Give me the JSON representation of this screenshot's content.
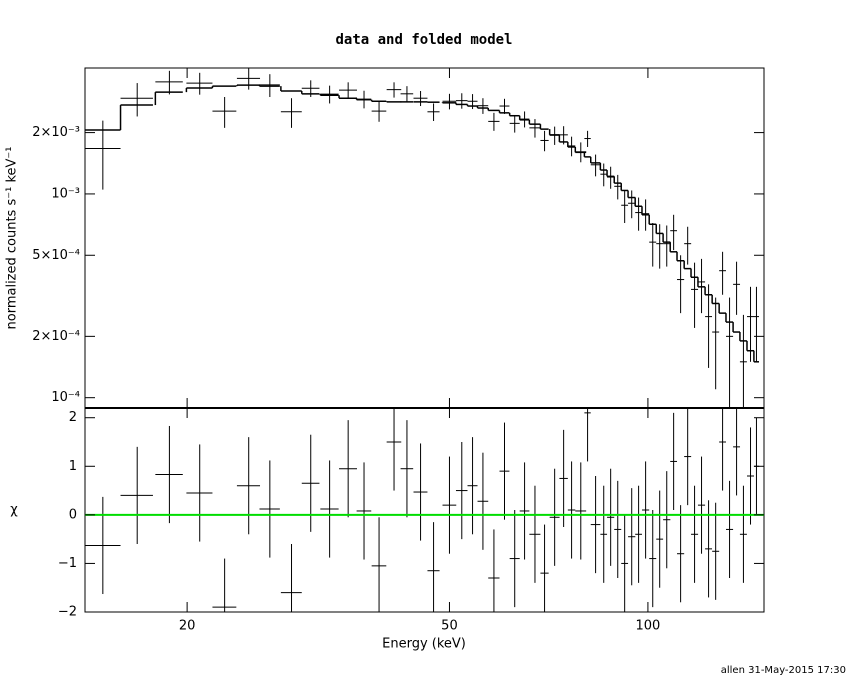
{
  "chart_data": {
    "type": "spectrum",
    "title": "data and folded model",
    "xlabel": "Energy (keV)",
    "ylabel": "normalized counts s⁻¹ keV⁻¹",
    "chi_label": "χ",
    "footer": "allen 31-May-2015 17:30",
    "xscale": "log",
    "yscale": "log",
    "xlim": [
      14,
      150
    ],
    "ylim": [
      8.9e-05,
      0.00415
    ],
    "chi_ylim": [
      -2,
      2.2
    ],
    "xticks": [
      20,
      50,
      100
    ],
    "yticks": [
      {
        "value": 0.0001,
        "label": "10⁻⁴"
      },
      {
        "value": 0.0002,
        "label": "2×10⁻⁴"
      },
      {
        "value": 0.0005,
        "label": "5×10⁻⁴"
      },
      {
        "value": 0.001,
        "label": "10⁻³"
      },
      {
        "value": 0.002,
        "label": "2×10⁻³"
      }
    ],
    "chi_yticks": [
      {
        "value": -2,
        "label": "−2"
      },
      {
        "value": -1,
        "label": "−1"
      },
      0,
      1,
      2
    ],
    "data_color": "#000000",
    "model_color": "#000000",
    "reference_line": {
      "value": 0,
      "color": "#00dd00"
    },
    "x": [
      14.9,
      16.8,
      18.8,
      20.9,
      22.8,
      24.8,
      26.7,
      28.8,
      30.8,
      32.9,
      35.1,
      37.1,
      39.1,
      41.2,
      43.1,
      45.2,
      47.3,
      50.0,
      52.2,
      54.2,
      56.2,
      58.4,
      60.6,
      62.8,
      65.0,
      67.4,
      69.7,
      72.2,
      74.5,
      76.6,
      79.1,
      81.0,
      83.3,
      85.7,
      87.8,
      90.0,
      92.2,
      94.5,
      96.8,
      99.2,
      101.7,
      104.2,
      106.8,
      109.4,
      112.1,
      114.9,
      117.7,
      120.6,
      123.6,
      126.7,
      129.8,
      133.0,
      136.3,
      139.6,
      143.1,
      146.1
    ],
    "xerr": [
      0.95,
      0.95,
      0.9,
      0.95,
      0.95,
      1.0,
      0.95,
      1.05,
      0.95,
      1.05,
      1.1,
      0.95,
      1.0,
      1.05,
      0.95,
      1.1,
      1.0,
      1.2,
      1.05,
      0.95,
      1.05,
      1.15,
      1.05,
      1.1,
      1.1,
      1.3,
      1.0,
      1.25,
      1.1,
      1.0,
      1.5,
      0.9,
      1.4,
      1.0,
      1.1,
      1.1,
      1.1,
      1.2,
      1.15,
      1.25,
      1.25,
      1.25,
      1.35,
      1.3,
      1.4,
      1.4,
      1.45,
      1.5,
      1.5,
      1.55,
      1.55,
      1.65,
      1.65,
      1.7,
      1.75,
      1.3
    ],
    "y": [
      0.00167,
      0.00295,
      0.00355,
      0.0035,
      0.00255,
      0.00369,
      0.00343,
      0.00253,
      0.0033,
      0.00309,
      0.00323,
      0.00292,
      0.00255,
      0.00325,
      0.0031,
      0.00295,
      0.00253,
      0.00285,
      0.00287,
      0.00285,
      0.00271,
      0.00227,
      0.0027,
      0.00222,
      0.00233,
      0.00211,
      0.00183,
      0.00194,
      0.00195,
      0.00172,
      0.00161,
      0.00187,
      0.00139,
      0.00125,
      0.00121,
      0.00109,
      0.00088,
      0.0009,
      0.00081,
      0.0008,
      0.00058,
      0.00057,
      0.00057,
      0.00066,
      0.00038,
      0.00057,
      0.00034,
      0.00037,
      0.00025,
      0.00021,
      0.00042,
      0.0002,
      0.00036,
      0.00015,
      0.00025,
      0.00025
    ],
    "yerr": [
      0.00062,
      0.00055,
      0.00047,
      0.00043,
      0.00044,
      0.00044,
      0.00044,
      0.00042,
      0.00031,
      0.00031,
      0.0003,
      0.00029,
      0.00029,
      0.00028,
      0.00028,
      0.00025,
      0.00025,
      0.00025,
      0.00025,
      0.00024,
      0.00024,
      0.00023,
      0.00023,
      0.00022,
      0.00021,
      0.00022,
      0.00021,
      0.0002,
      0.0002,
      0.00019,
      0.00018,
      0.00017,
      0.00017,
      0.00016,
      0.00015,
      0.00015,
      0.00016,
      0.00014,
      0.00015,
      0.00014,
      0.00014,
      0.00014,
      0.00013,
      0.00013,
      0.00012,
      0.00012,
      0.00012,
      0.00011,
      0.00011,
      0.0001,
      0.0001,
      0.00011,
      0.000105,
      0.000105,
      0.0001,
      0.0001
    ],
    "model": [
      0.00206,
      0.00273,
      0.00316,
      0.00331,
      0.00338,
      0.00342,
      0.00338,
      0.0032,
      0.0031,
      0.00305,
      0.00295,
      0.0029,
      0.00285,
      0.00283,
      0.00283,
      0.00283,
      0.00282,
      0.0028,
      0.00275,
      0.0027,
      0.00264,
      0.00257,
      0.0025,
      0.00242,
      0.00231,
      0.0022,
      0.00208,
      0.00195,
      0.0018,
      0.0017,
      0.0016,
      0.00152,
      0.00142,
      0.00131,
      0.00122,
      0.00113,
      0.00104,
      0.00096,
      0.00087,
      0.00079,
      0.00071,
      0.00064,
      0.00058,
      0.00052,
      0.00047,
      0.00043,
      0.00039,
      0.00035,
      0.00032,
      0.00029,
      0.00026,
      0.000235,
      0.00021,
      0.00019,
      0.00017,
      0.00015
    ],
    "chi": [
      -0.63,
      0.4,
      0.83,
      0.45,
      -1.9,
      0.6,
      0.12,
      -1.6,
      0.65,
      0.12,
      0.95,
      0.08,
      -1.05,
      1.5,
      0.95,
      0.47,
      -1.15,
      0.2,
      0.5,
      0.6,
      0.28,
      -1.3,
      0.9,
      -0.9,
      0.08,
      -0.4,
      -1.2,
      -0.05,
      0.75,
      0.1,
      0.08,
      2.1,
      -0.2,
      -0.4,
      -0.05,
      -0.3,
      -1.0,
      -0.45,
      -0.4,
      0.1,
      -0.9,
      -0.5,
      -0.1,
      1.1,
      -0.8,
      1.2,
      -0.4,
      0.2,
      -0.7,
      -0.75,
      1.5,
      -0.3,
      1.4,
      -0.4,
      0.8,
      1.0
    ]
  }
}
